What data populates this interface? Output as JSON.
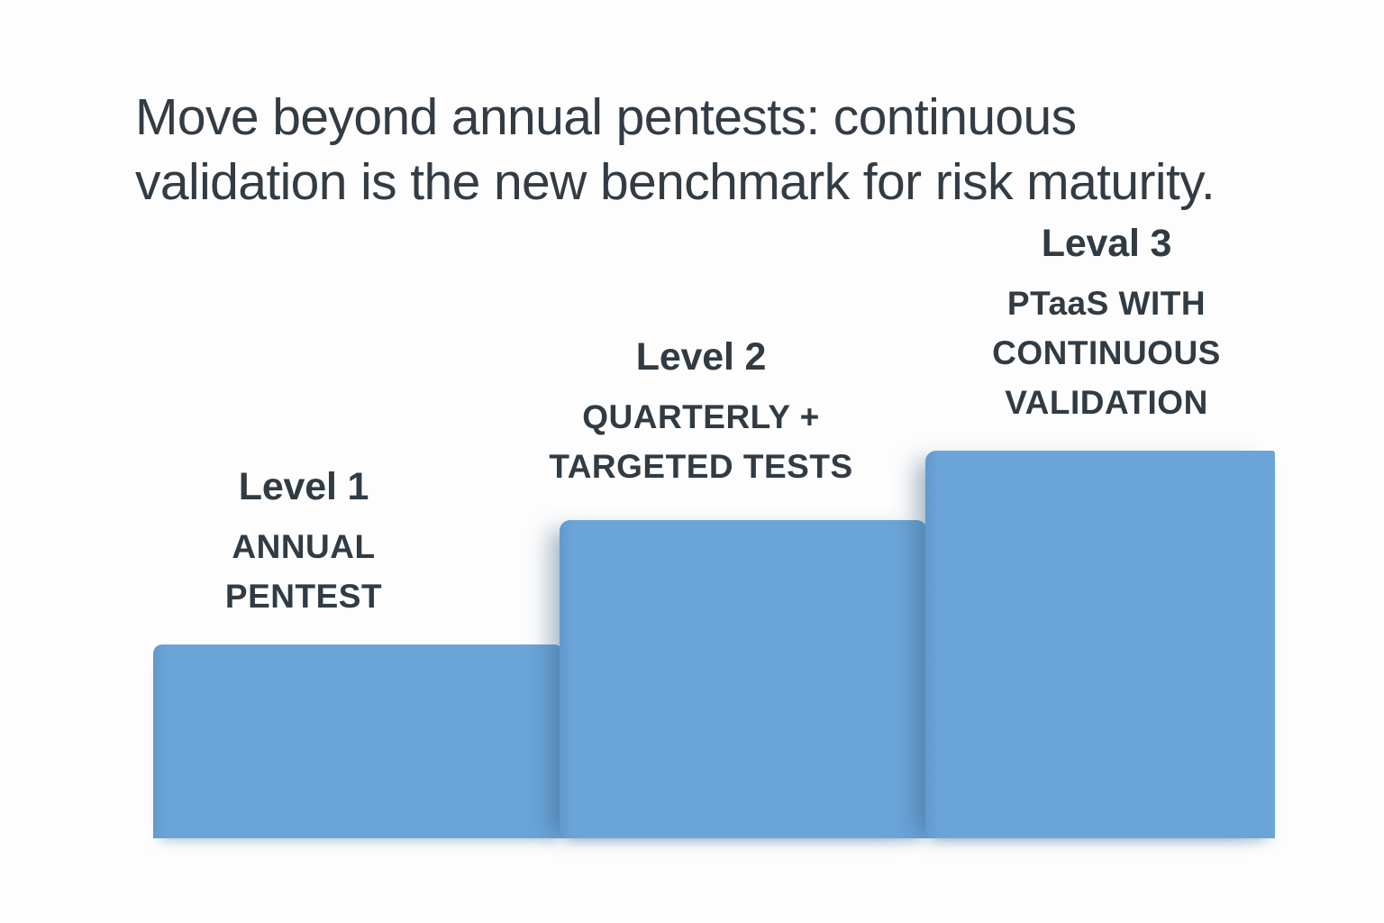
{
  "title": {
    "text": "Move beyond annual pentests: continuous validation is the new benchmark for risk maturity.",
    "lines": [
      "Move beyond annual pentests: continuous",
      "validation is the new benchmark for risk maturity."
    ]
  },
  "levels": [
    {
      "heading": "Level 1",
      "label_lines": [
        "ANNUAL",
        "PENTEST"
      ]
    },
    {
      "heading": "Level 2",
      "label_lines": [
        "QUARTERLY +",
        "TARGETED TESTS"
      ]
    },
    {
      "heading": "Leval 3",
      "label_lines": [
        "PTaaS WITH",
        "CONTINUOUS",
        "VALIDATION"
      ]
    }
  ],
  "colors": {
    "bar": "#6ba5d8",
    "bar_edge_shadow": "#4f86b8",
    "text": "#333c44",
    "background": "#fdfdfd"
  },
  "chart_data": {
    "type": "bar",
    "title": "Move beyond annual pentests: continuous validation is the new benchmark for risk maturity.",
    "categories": [
      "Level 1 — ANNUAL PENTEST",
      "Level 2 — QUARTERLY + TARGETED TESTS",
      "Leval 3 — PTaaS WITH CONTINUOUS VALIDATION"
    ],
    "values": [
      215,
      353,
      430
    ],
    "value_unit": "bar height in screen px (no numeric axis shown in source image)",
    "relative_values": [
      1.0,
      1.64,
      2.0
    ],
    "bar_color": "#6ba5d8",
    "xlabel": "",
    "ylabel": "",
    "grid": false,
    "legend": false,
    "axes_labeled": false,
    "layout": "ascending staircase, labels above each bar, common baseline"
  }
}
